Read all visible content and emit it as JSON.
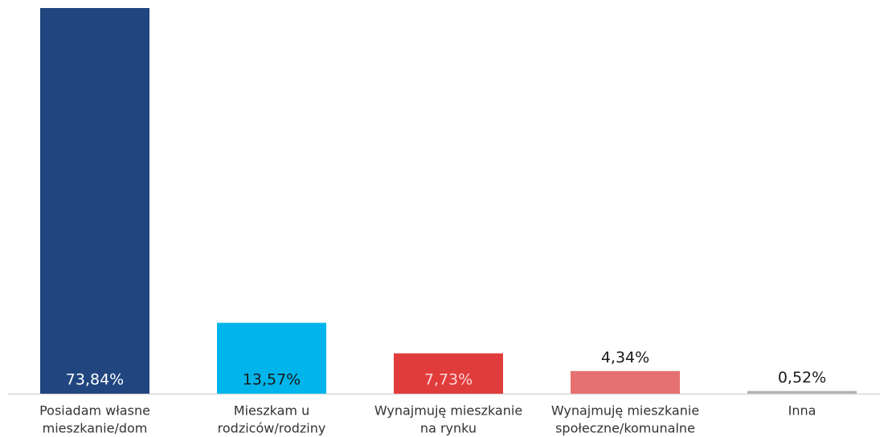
{
  "chart_data": {
    "type": "bar",
    "categories": [
      [
        "Posiadam własne",
        "mieszkanie/dom"
      ],
      [
        "Mieszkam u",
        "rodziców/rodziny"
      ],
      [
        "Wynajmuję mieszkanie",
        "na rynku"
      ],
      [
        "Wynajmuję mieszkanie",
        "społeczne/komunalne"
      ],
      [
        "Inna"
      ]
    ],
    "values": [
      73.84,
      13.57,
      7.73,
      4.34,
      0.52
    ],
    "value_labels": [
      "73,84%",
      "13,57%",
      "7,73%",
      "4,34%",
      "0,52%"
    ],
    "colors": [
      "#21467f",
      "#00b5eb",
      "#e03c3c",
      "#e57070",
      "#b3b3b3"
    ],
    "label_colors": [
      "#ffffff",
      "#1a1a1a",
      "#ffd6d6",
      "#1a1a1a",
      "#1a1a1a"
    ]
  }
}
